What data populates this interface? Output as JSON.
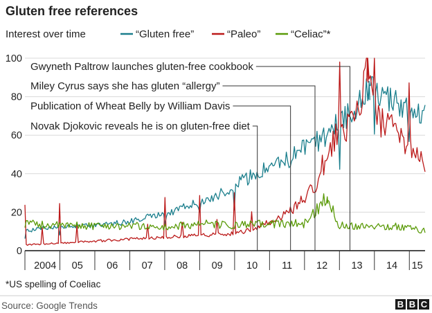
{
  "chart_data": {
    "type": "line",
    "title": "Gluten free references",
    "subtitle": "Interest over time",
    "ylim": [
      0,
      100
    ],
    "yticks": [
      0,
      20,
      40,
      60,
      80,
      100
    ],
    "xlim": [
      2004.0,
      2015.45
    ],
    "xtick_labels": [
      "2004",
      "05",
      "06",
      "07",
      "08",
      "09",
      "10",
      "11",
      "12",
      "13",
      "14",
      "15"
    ],
    "grid": "horizontal",
    "legend_position": "top",
    "series": [
      {
        "name": "“Gluten free”",
        "color": "#1a7e8c",
        "points": [
          [
            2004.0,
            10
          ],
          [
            2004.5,
            12
          ],
          [
            2005.0,
            12
          ],
          [
            2005.5,
            13
          ],
          [
            2006.0,
            13
          ],
          [
            2006.5,
            14
          ],
          [
            2007.0,
            15
          ],
          [
            2007.5,
            18
          ],
          [
            2008.0,
            19
          ],
          [
            2008.5,
            22
          ],
          [
            2009.0,
            25
          ],
          [
            2009.5,
            29
          ],
          [
            2010.0,
            34
          ],
          [
            2010.5,
            39
          ],
          [
            2011.0,
            43
          ],
          [
            2011.5,
            47
          ],
          [
            2012.0,
            53
          ],
          [
            2012.5,
            58
          ],
          [
            2013.0,
            68
          ],
          [
            2013.5,
            74
          ],
          [
            2013.85,
            88
          ],
          [
            2014.0,
            80
          ],
          [
            2014.5,
            78
          ],
          [
            2015.0,
            72
          ],
          [
            2015.45,
            70
          ]
        ]
      },
      {
        "name": "“Paleo”",
        "color": "#bb1919",
        "points": [
          [
            2004.0,
            3
          ],
          [
            2005.0,
            4
          ],
          [
            2006.0,
            5
          ],
          [
            2007.0,
            6
          ],
          [
            2008.0,
            7
          ],
          [
            2009.0,
            8
          ],
          [
            2010.0,
            9
          ],
          [
            2010.5,
            11
          ],
          [
            2011.0,
            15
          ],
          [
            2011.5,
            19
          ],
          [
            2012.0,
            27
          ],
          [
            2012.5,
            38
          ],
          [
            2012.85,
            58
          ],
          [
            2013.0,
            63
          ],
          [
            2013.5,
            66
          ],
          [
            2013.8,
            100
          ],
          [
            2014.0,
            70
          ],
          [
            2014.5,
            62
          ],
          [
            2015.0,
            55
          ],
          [
            2015.45,
            46
          ]
        ]
      },
      {
        "name": "“Celiac”*",
        "color": "#5a9a08",
        "points": [
          [
            2004.0,
            14
          ],
          [
            2005.0,
            13
          ],
          [
            2006.0,
            13
          ],
          [
            2007.0,
            13
          ],
          [
            2008.0,
            12
          ],
          [
            2009.0,
            14
          ],
          [
            2010.0,
            13
          ],
          [
            2011.0,
            14
          ],
          [
            2012.0,
            14
          ],
          [
            2012.65,
            28
          ],
          [
            2013.0,
            13
          ],
          [
            2014.0,
            13
          ],
          [
            2015.0,
            12
          ],
          [
            2015.45,
            10
          ]
        ]
      }
    ],
    "annotations": [
      {
        "text": "Gwyneth Paltrow launches gluten-free cookbook",
        "x": 2013.3
      },
      {
        "text": "Miley Cyrus says she has gluten “allergy”",
        "x": 2012.3
      },
      {
        "text": "Publication of Wheat Belly by William Davis",
        "x": 2011.6
      },
      {
        "text": "Novak Djokovic reveals he is on gluten-free diet",
        "x": 2010.65
      }
    ],
    "footnote": "*US spelling of Coeliac",
    "source": "Source: Google Trends"
  },
  "branding": {
    "letters": [
      "B",
      "B",
      "C"
    ]
  }
}
